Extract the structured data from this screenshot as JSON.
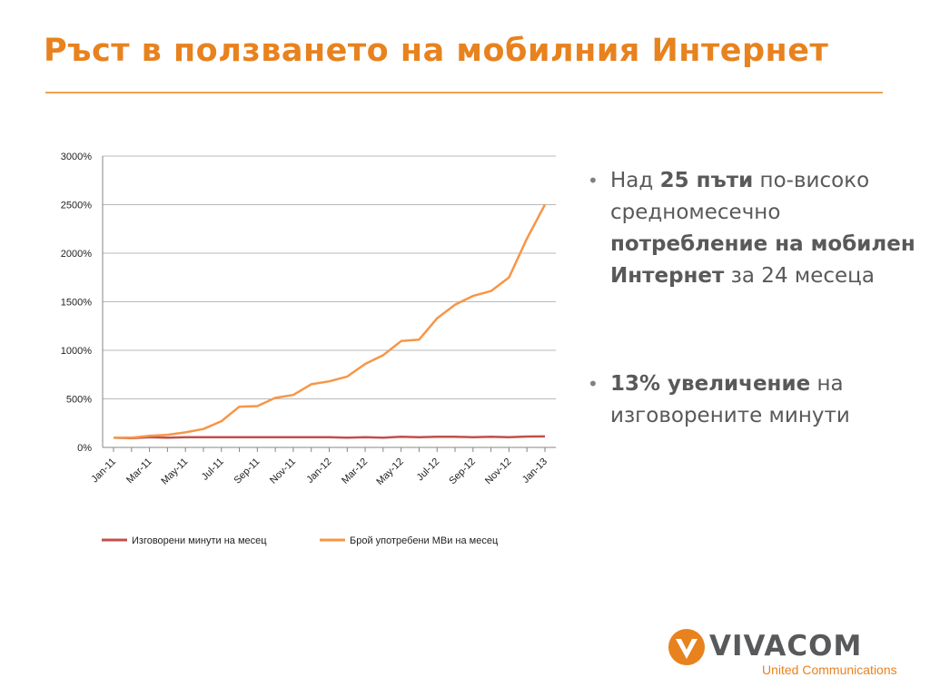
{
  "slide": {
    "title": "Ръст в ползването на мобилния Интернет"
  },
  "bullets": [
    {
      "parts": [
        {
          "text": "Над ",
          "bold": false
        },
        {
          "text": "25 пъти",
          "bold": true
        },
        {
          "text": " по-високо средномесечно ",
          "bold": false
        },
        {
          "text": "потребление на мобилен Интернет",
          "bold": true
        },
        {
          "text": " за 24 месеца",
          "bold": false
        }
      ]
    },
    {
      "parts": [
        {
          "text": "13% увеличение",
          "bold": true
        },
        {
          "text": " на изговорените минути",
          "bold": false
        }
      ]
    }
  ],
  "logo": {
    "word": "VIVACOM",
    "tagline": "United Communications",
    "colors": {
      "orange": "#E8821E",
      "gray": "#58595B"
    }
  },
  "chart_data": {
    "type": "line",
    "title": "",
    "xlabel": "",
    "ylabel": "",
    "ylim": [
      0,
      3000
    ],
    "yticks": [
      "0%",
      "500%",
      "1000%",
      "1500%",
      "2000%",
      "2500%",
      "3000%"
    ],
    "y_tick_values": [
      0,
      500,
      1000,
      1500,
      2000,
      2500,
      3000
    ],
    "x_tick_labels": [
      "Jan-11",
      "Mar-11",
      "May-11",
      "Jul-11",
      "Sep-11",
      "Nov-11",
      "Jan-12",
      "Mar-12",
      "May-12",
      "Jul-12",
      "Sep-12",
      "Nov-12",
      "Jan-13"
    ],
    "x": [
      "Jan-11",
      "Feb-11",
      "Mar-11",
      "Apr-11",
      "May-11",
      "Jun-11",
      "Jul-11",
      "Aug-11",
      "Sep-11",
      "Oct-11",
      "Nov-11",
      "Dec-11",
      "Jan-12",
      "Feb-12",
      "Mar-12",
      "Apr-12",
      "May-12",
      "Jun-12",
      "Jul-12",
      "Aug-12",
      "Sep-12",
      "Oct-12",
      "Nov-12",
      "Dec-12",
      "Jan-13"
    ],
    "grid": true,
    "legend_position": "bottom",
    "series": [
      {
        "name": "Изговорени минути на месец",
        "color": "#C0504D",
        "values": [
          100,
          95,
          105,
          100,
          105,
          105,
          105,
          105,
          105,
          105,
          105,
          105,
          105,
          100,
          105,
          100,
          110,
          105,
          110,
          110,
          105,
          110,
          105,
          112,
          113
        ]
      },
      {
        "name": "Брой употребени MBи на месец",
        "color": "#F79646",
        "values": [
          100,
          100,
          120,
          130,
          155,
          190,
          270,
          420,
          425,
          510,
          540,
          650,
          680,
          730,
          860,
          950,
          1095,
          1110,
          1330,
          1470,
          1560,
          1610,
          1750,
          2150,
          2500
        ]
      }
    ]
  }
}
